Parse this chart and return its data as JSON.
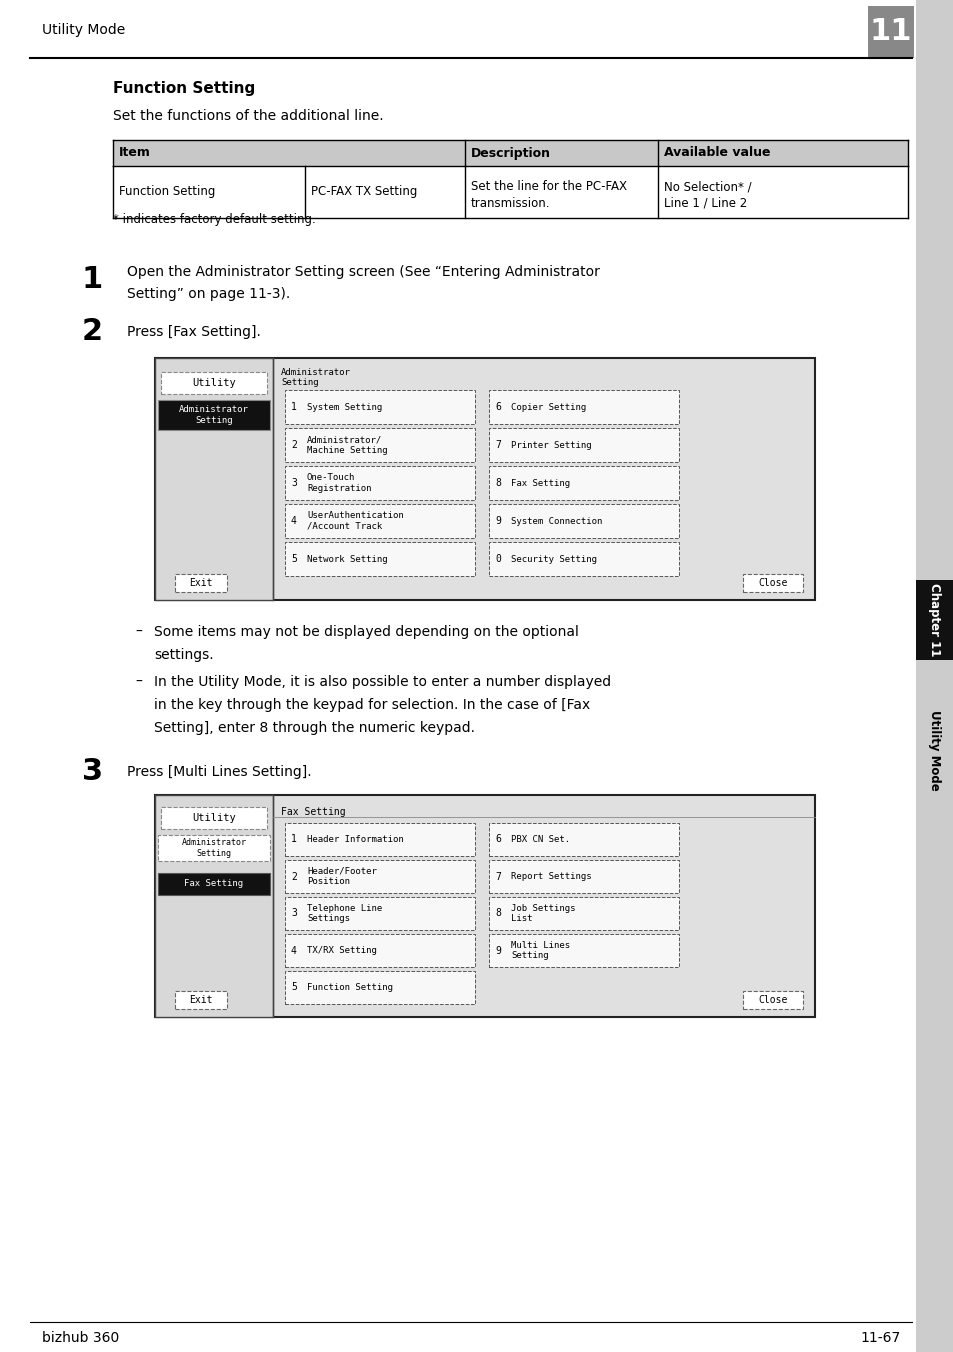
{
  "page_header": "Utility Mode",
  "chapter_num": "11",
  "section_title": "Function Setting",
  "section_desc": "Set the functions of the additional line.",
  "table_headers": [
    "Item",
    "Description",
    "Available value"
  ],
  "footnote": "* indicates factory default setting.",
  "step1_num": "1",
  "step1_text1": "Open the Administrator Setting screen (See “Entering Administrator",
  "step1_text2": "Setting” on page 11-3).",
  "step2_num": "2",
  "step2_text": "Press [Fax Setting].",
  "screen1_left_buttons": [
    {
      "num": "1",
      "label": "System Setting"
    },
    {
      "num": "2",
      "label": "Administrator/\nMachine Setting"
    },
    {
      "num": "3",
      "label": "One-Touch\nRegistration"
    },
    {
      "num": "4",
      "label": "UserAuthentication\n/Account Track"
    },
    {
      "num": "5",
      "label": "Network Setting"
    }
  ],
  "screen1_right_buttons": [
    {
      "num": "6",
      "label": "Copier Setting"
    },
    {
      "num": "7",
      "label": "Printer Setting"
    },
    {
      "num": "8",
      "label": "Fax Setting"
    },
    {
      "num": "9",
      "label": "System Connection"
    },
    {
      "num": "0",
      "label": "Security Setting"
    }
  ],
  "bullet1_line1": "Some items may not be displayed depending on the optional",
  "bullet1_line2": "settings.",
  "bullet2_line1": "In the Utility Mode, it is also possible to enter a number displayed",
  "bullet2_line2": "in the key through the keypad for selection. In the case of [Fax",
  "bullet2_line3": "Setting], enter 8 through the numeric keypad.",
  "step3_num": "3",
  "step3_text": "Press [Multi Lines Setting].",
  "screen2_left_buttons": [
    {
      "num": "1",
      "label": "Header Information"
    },
    {
      "num": "2",
      "label": "Header/Footer\nPosition"
    },
    {
      "num": "3",
      "label": "Telephone Line\nSettings"
    },
    {
      "num": "4",
      "label": "TX/RX Setting"
    },
    {
      "num": "5",
      "label": "Function Setting"
    }
  ],
  "screen2_right_buttons": [
    {
      "num": "6",
      "label": "PBX CN Set."
    },
    {
      "num": "7",
      "label": "Report Settings"
    },
    {
      "num": "8",
      "label": "Job Settings\nList"
    },
    {
      "num": "9",
      "label": "Multi Lines\nSetting"
    }
  ],
  "footer_left": "bizhub 360",
  "footer_right": "11-67",
  "sidebar_text": "Utility Mode",
  "sidebar_chapter": "Chapter 11"
}
